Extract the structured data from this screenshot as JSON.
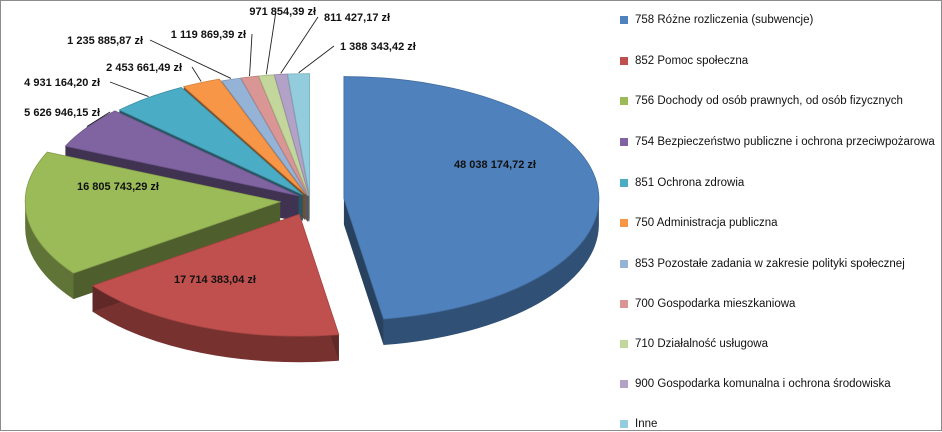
{
  "chart_data": {
    "type": "pie",
    "title": "",
    "slices": [
      {
        "name": "758 Różne rozliczenia (subwencje)",
        "value": 48038174.72,
        "label": "48 038 174,72 zł",
        "color": "#4f81bd"
      },
      {
        "name": "852 Pomoc społeczna",
        "value": 17714383.04,
        "label": "17 714 383,04 zł",
        "color": "#c0504d"
      },
      {
        "name": "756 Dochody od osób prawnych, od osób fizycznych",
        "value": 16805743.29,
        "label": "16 805 743,29 zł",
        "color": "#9bbb59"
      },
      {
        "name": "754 Bezpieczeństwo publiczne i ochrona przeciwpożarowa",
        "value": 5626946.15,
        "label": "5 626 946,15 zł",
        "color": "#8064a2"
      },
      {
        "name": "851 Ochrona zdrowia",
        "value": 4931164.2,
        "label": "4 931 164,20 zł",
        "color": "#4bacc6"
      },
      {
        "name": "750 Administracja publiczna",
        "value": 2453661.49,
        "label": "2 453 661,49 zł",
        "color": "#f79646"
      },
      {
        "name": "853 Pozostałe zadania w zakresie polityki społecznej",
        "value": 1235885.87,
        "label": "1 235 885,87 zł",
        "color": "#95b3d7"
      },
      {
        "name": "700 Gospodarka mieszkaniowa",
        "value": 1119869.39,
        "label": "1 119 869,39 zł",
        "color": "#d99694"
      },
      {
        "name": "710 Działalność usługowa",
        "value": 971854.39,
        "label": "971 854,39 zł",
        "color": "#c3d69b"
      },
      {
        "name": "900 Gospodarka komunalna i ochrona środowiska",
        "value": 811427.17,
        "label": "811 427,17 zł",
        "color": "#b2a2c7"
      },
      {
        "name": "Inne",
        "value": 1388343.42,
        "label": "1 388 343,42 zł",
        "color": "#93cddd"
      }
    ],
    "legend_position": "right",
    "style": "3d-exploded-pie"
  }
}
